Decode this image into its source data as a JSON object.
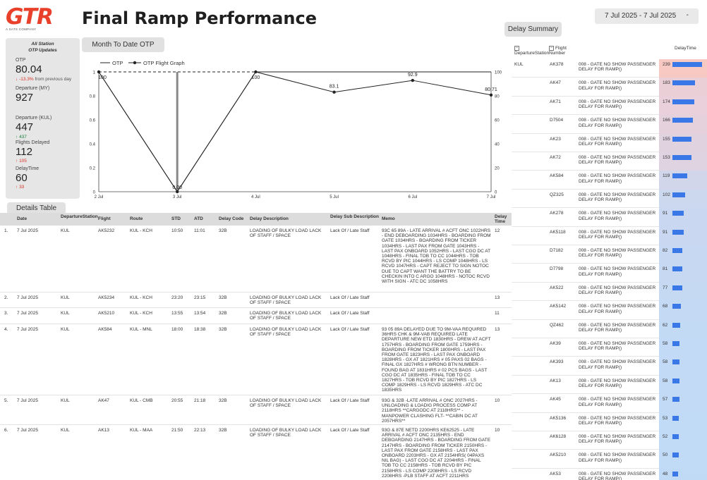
{
  "brand": {
    "logo_text": "GTR",
    "logo_sub": "A SATS COMPANY",
    "color": "#e8402a"
  },
  "header": {
    "title": "Final Ramp Performance",
    "date_range": "7 Jul 2025 - 7 Jul 2025",
    "caret": "-"
  },
  "tabs": {
    "delay_summary": "Delay Summary",
    "month_to_date": "Month To Date OTP",
    "details_table": "Details Table"
  },
  "stats": {
    "header": "All Station\nOTP Updates",
    "otp_label": "OTP",
    "otp_value": "80.04",
    "otp_delta": "-13.3%",
    "otp_delta_suffix": "from previous day",
    "dep_my_label": "Departure (MY)",
    "dep_my_value": "927",
    "dep_kul_label": "Departure (KUL)",
    "dep_kul_value": "447",
    "dep_kul_delta": "437",
    "flights_delayed_label": "Flights Delayed",
    "flights_delayed_value": "112",
    "flights_delayed_delta": "105",
    "delay_time_label": "DelayTime",
    "delay_time_value": "60",
    "delay_time_delta": "33"
  },
  "chart_data": {
    "type": "line",
    "legend": [
      "OTP",
      "OTP Flight Graph"
    ],
    "categories": [
      "2 Jul",
      "3 Jul",
      "4 Jul",
      "5 Jul",
      "6 Jul",
      "7 Jul"
    ],
    "series": [
      {
        "name": "OTP",
        "values": [
          1,
          0,
          1,
          1,
          1,
          1
        ]
      },
      {
        "name": "OTP Flight Graph",
        "values": [
          100,
          0,
          100,
          83.1,
          92.9,
          80.71
        ]
      }
    ],
    "point_labels": [
      "100",
      "0.00",
      "100",
      "83.1",
      "92.9",
      "80.71"
    ],
    "left_axis": {
      "min": 0,
      "max": 1,
      "ticks": [
        "0",
        "0.2",
        "0.4",
        "0.6",
        "0.8",
        "1"
      ]
    },
    "right_axis": {
      "min": 0,
      "max": 100,
      "ticks": [
        "0",
        "20",
        "40",
        "60",
        "80",
        "100"
      ]
    },
    "target_line": 1
  },
  "details": {
    "columns": [
      "",
      "Date",
      "DepartureStation",
      "Flight",
      "Route",
      "STD",
      "ATD",
      "Delay Code",
      "Delay Description",
      "Delay Sub Description",
      "Memo",
      "Delay Time"
    ],
    "rows": [
      {
        "no": "1.",
        "date": "7 Jul 2025",
        "station": "KUL",
        "flight": "AK5232",
        "route": "KUL - KCH",
        "std": "10:50",
        "atd": "11:01",
        "code": "32B",
        "desc": "LOADING OF BULKY LOAD LACK OF STAFF / SPACE",
        "sub": "Lack Of / Late Staff",
        "memo": "93C 65 89A - LATE ARRIVAL # ACFT ONC 1022HRS - END DEBOARDING 1034HRS - BOARDING FROM GATE 1034HRS - BOARDING FROM TICKER 1034HRS - LAST PAX FROM GATE 1043HRS - LAST PAX ONBOARD 1052HRS - LAST CGO DC AT 1048HRS - FINAL TOB TO CC 1044HRS - TOB RCVD BY PIC 1044HRS - LS COMP 1048HRS - LS RCVD 1047HRS - CAPT REJECT TO SIGN NOTOC DUE TO CAPT WANT THE BATTRY TO BE CHECKIN INTO C ARGO 1048HRS - NOTOC RCVD WITH SIGN - ATC DC 1058HRS",
        "time": "12"
      },
      {
        "no": "2.",
        "date": "7 Jul 2025",
        "station": "KUL",
        "flight": "AK5234",
        "route": "KUL - KCH",
        "std": "23:20",
        "atd": "23:15",
        "code": "32B",
        "desc": "LOADING OF BULKY LOAD LACK OF STAFF / SPACE",
        "sub": "Lack Of / Late Staff",
        "memo": "",
        "time": "13"
      },
      {
        "no": "3.",
        "date": "7 Jul 2025",
        "station": "KUL",
        "flight": "AK5210",
        "route": "KUL - KCH",
        "std": "13:55",
        "atd": "13:54",
        "code": "32B",
        "desc": "LOADING OF BULKY LOAD LACK OF STAFF / SPACE",
        "sub": "Lack Of / Late Staff",
        "memo": "",
        "time": "11"
      },
      {
        "no": "4.",
        "date": "7 Jul 2025",
        "station": "KUL",
        "flight": "AK584",
        "route": "KUL - MNL",
        "std": "18:00",
        "atd": "18:38",
        "code": "32B",
        "desc": "LOADING OF BULKY LOAD LACK OF STAFF / SPACE",
        "sub": "Lack Of / Late Staff",
        "memo": "93 05 89A DELAYED DUE TO 9M-VAA REQUIRED 36HRS CHK & 9M-VAB REQUIRED LATE DEPARTURE NEW ETD 1830HRS - DREW AT ACFT 1757HRS - BOARDING FROM GATE 1759HRS - BOARDING FROM TICKER 1800HRS - LAST PAX FROM GATE 1823HRS - LAST PAX ONBOARD 1828HRS - GX AT 1821HRS # 05 PAXS 02 BAGS - FINAL GX 1827HRS # WRONG BTN NUMBER - FOUND BAG AT 1831HRS # 02 PCS BAGS - LAST CGO DC AT 1835HRS - FINAL TOB TO CC 1827HRS - TOB RCVD BY PIC 1827HRS - LS COMP 1829HRS - LS RCVD 1829HRS - ATC DC 1835HRS",
        "time": "13"
      },
      {
        "no": "5.",
        "date": "7 Jul 2025",
        "station": "KUL",
        "flight": "AK47",
        "route": "KUL - CMB",
        "std": "20:55",
        "atd": "21:18",
        "code": "32B",
        "desc": "LOADING OF BULKY LOAD LACK OF STAFF / SPACE",
        "sub": "Lack Of / Late Staff",
        "memo": "93G & 32B -LATE ARRIVAL # ONC 2027HRS - UNLOADING & LOADIG PROCESS COMP AT 2118HRS **CARGODC AT 2118HRS** - MANPOWER CLASHING FLT- **CABIN DC AT 2057HRS**",
        "time": "10"
      },
      {
        "no": "6.",
        "date": "7 Jul 2025",
        "station": "KUL",
        "flight": "AK13",
        "route": "KUL - MAA",
        "std": "21:50",
        "atd": "22:13",
        "code": "32B",
        "desc": "LOADING OF BULKY LOAD LACK OF STAFF / SPACE",
        "sub": "Lack Of / Late Staff",
        "memo": "93G & 87E NETD 2200HRS KE62525 - LATE ARRIVAL # ACFT ONC 2135HRS - END DEBOARDING 2147HRS - BOARDING FROM GATE 2147HRS - BOARDING FROM TICKER 2150HRS - LAST PAX FROM GATE 2158HRS - LAST PAX ONBOARD 2203HRS - GX AT 2154HRS( 04PAXS NIL BAG) - LAST CGO DC AT 2204HRS - FINAL TOB TO CC 2158HRS - TOB RCVD BY PIC 2158HRS - LS COMP 2208HRS - LS RCVD 2208HRS -PLB STAFF AT ACFT 2211HRS",
        "time": "10"
      }
    ]
  },
  "summary": {
    "columns": {
      "station": "DepartureStation",
      "flight": "Flight Number",
      "delay": "DelayTime"
    },
    "station": "KUL",
    "reason": "008 - GATE NO SHOW PASSENGER DELAY FOR RAMP()",
    "max_delay": 239,
    "rows": [
      {
        "flight": "AK378",
        "delay": 239,
        "bg": "#f8c8c2"
      },
      {
        "flight": "AK47",
        "delay": 183,
        "bg": "#ebcfd7"
      },
      {
        "flight": "AK71",
        "delay": 174,
        "bg": "#e9d0da"
      },
      {
        "flight": "D7504",
        "delay": 166,
        "bg": "#e5d1dc"
      },
      {
        "flight": "AK23",
        "delay": 155,
        "bg": "#e1d2df"
      },
      {
        "flight": "AK72",
        "delay": 153,
        "bg": "#dfd3e1"
      },
      {
        "flight": "AK584",
        "delay": 119,
        "bg": "#d2d6ea"
      },
      {
        "flight": "QZ325",
        "delay": 102,
        "bg": "#ccd8ee"
      },
      {
        "flight": "AK278",
        "delay": 91,
        "bg": "#c9d8f0"
      },
      {
        "flight": "AK5118",
        "delay": 91,
        "bg": "#c9d8f0"
      },
      {
        "flight": "D7182",
        "delay": 82,
        "bg": "#c7d9f2"
      },
      {
        "flight": "D7798",
        "delay": 81,
        "bg": "#c7d9f2"
      },
      {
        "flight": "AK522",
        "delay": 77,
        "bg": "#c6d9f3"
      },
      {
        "flight": "AK5142",
        "delay": 68,
        "bg": "#c4daf4"
      },
      {
        "flight": "QZ462",
        "delay": 62,
        "bg": "#c3daf5"
      },
      {
        "flight": "AK39",
        "delay": 58,
        "bg": "#c2daf5"
      },
      {
        "flight": "AK393",
        "delay": 58,
        "bg": "#c2daf5"
      },
      {
        "flight": "AK13",
        "delay": 58,
        "bg": "#c2daf5"
      },
      {
        "flight": "AK45",
        "delay": 57,
        "bg": "#c2daf5"
      },
      {
        "flight": "AK5136",
        "delay": 53,
        "bg": "#c1daf6"
      },
      {
        "flight": "AK6128",
        "delay": 52,
        "bg": "#c1daf6"
      },
      {
        "flight": "AK5210",
        "delay": 50,
        "bg": "#c1daf6"
      },
      {
        "flight": "AK53",
        "delay": 48,
        "bg": "#c0daf6"
      }
    ]
  }
}
